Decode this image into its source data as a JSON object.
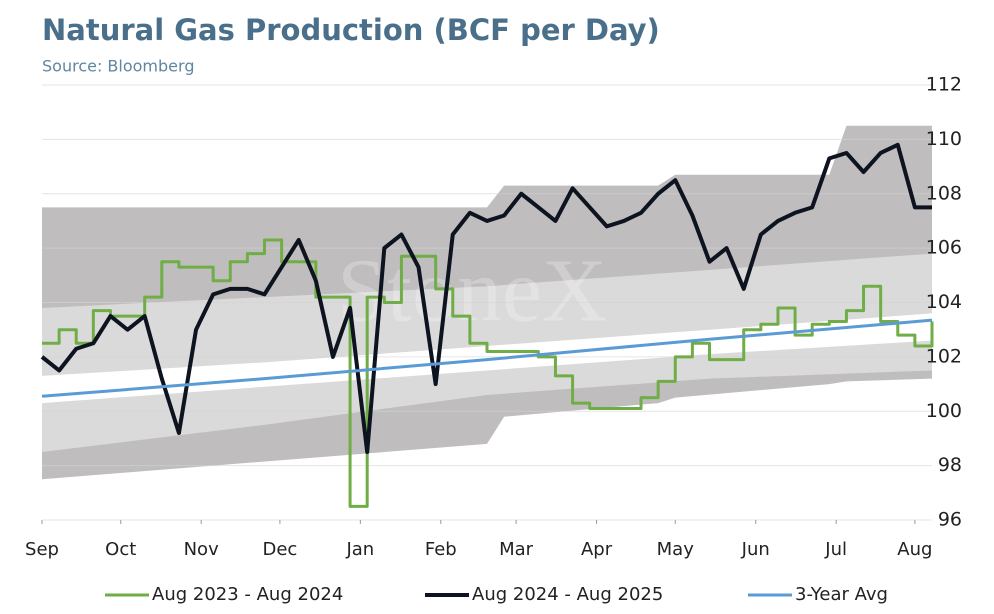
{
  "chart_data": {
    "type": "line",
    "title": "Natural Gas Production (BCF per Day)",
    "subtitle": "Source: Bloomberg",
    "watermark": "StoneX",
    "xlim": [
      0,
      52
    ],
    "xticks": [
      {
        "value": 0,
        "label": "Sep"
      },
      {
        "value": 4.6,
        "label": "Oct"
      },
      {
        "value": 9.3,
        "label": "Nov"
      },
      {
        "value": 13.9,
        "label": "Dec"
      },
      {
        "value": 18.6,
        "label": "Jan"
      },
      {
        "value": 23.3,
        "label": "Feb"
      },
      {
        "value": 27.7,
        "label": "Mar"
      },
      {
        "value": 32.4,
        "label": "Apr"
      },
      {
        "value": 37,
        "label": "May"
      },
      {
        "value": 41.7,
        "label": "Jun"
      },
      {
        "value": 46.4,
        "label": "Jul"
      },
      {
        "value": 51,
        "label": "Aug"
      }
    ],
    "ylim": [
      96,
      112
    ],
    "yticks": [
      96,
      98,
      100,
      102,
      104,
      106,
      108,
      110,
      112
    ],
    "grid": true,
    "legend": "bottom",
    "bands": [
      {
        "color": "#bfbdbd",
        "x": [
          0,
          26,
          27,
          36,
          37,
          46,
          47,
          52
        ],
        "upper": [
          107.5,
          107.5,
          108.3,
          108.3,
          108.7,
          108.7,
          110.5,
          110.5
        ],
        "lower": [
          97.5,
          98.8,
          99.8,
          100.3,
          100.5,
          101,
          101.1,
          101.2
        ]
      },
      {
        "color": "#dadada",
        "x": [
          0,
          13,
          26,
          39,
          52
        ],
        "upper": [
          103.8,
          104.2,
          104.6,
          105.2,
          105.8
        ],
        "lower": [
          98.5,
          99.5,
          100.6,
          101.2,
          101.5
        ]
      },
      {
        "color": "#ffffff",
        "x": [
          0,
          13,
          26,
          39,
          52
        ],
        "upper": [
          101.3,
          101.8,
          102.4,
          103,
          103.6
        ],
        "lower": [
          100.3,
          100.9,
          101.5,
          102.1,
          102.6
        ]
      }
    ],
    "series": [
      {
        "name": "Aug 2023 - Aug 2024",
        "color": "#70ad47",
        "step": true,
        "x": [
          0,
          1,
          2,
          3,
          4,
          5,
          6,
          7,
          8,
          9,
          10,
          11,
          12,
          13,
          14,
          15,
          16,
          17,
          18,
          19,
          20,
          21,
          22,
          23,
          24,
          25,
          26,
          27,
          28,
          29,
          30,
          31,
          32,
          33,
          34,
          35,
          36,
          37,
          38,
          39,
          40,
          41,
          42,
          43,
          44,
          45,
          46,
          47,
          48,
          49,
          50,
          51,
          52
        ],
        "values": [
          102.5,
          103,
          102.5,
          103.7,
          103.5,
          103.5,
          104.2,
          105.5,
          105.3,
          105.3,
          104.8,
          105.5,
          105.8,
          106.3,
          105.5,
          105.5,
          104.2,
          104.2,
          96.5,
          104.2,
          104,
          105.7,
          105.7,
          104.5,
          103.5,
          102.5,
          102.2,
          102.2,
          102.2,
          102,
          101.3,
          100.3,
          100.1,
          100.1,
          100.1,
          100.5,
          101.1,
          102,
          102.5,
          101.9,
          101.9,
          103,
          103.2,
          103.8,
          102.8,
          103.2,
          103.3,
          103.7,
          104.6,
          103.3,
          102.8,
          102.4,
          103.3
        ]
      },
      {
        "name": "Aug 2024 - Aug 2025",
        "color": "#0d1420",
        "width": 4,
        "x": [
          0,
          1,
          2,
          3,
          4,
          5,
          6,
          7,
          8,
          9,
          10,
          11,
          12,
          13,
          14,
          15,
          16,
          17,
          18,
          19,
          20,
          21,
          22,
          23,
          24,
          25,
          26,
          27,
          28,
          29,
          30,
          31,
          32,
          33,
          34,
          35,
          36,
          37,
          38,
          39,
          40,
          41,
          42,
          43,
          44,
          45,
          46,
          47,
          48,
          49,
          50,
          51,
          52
        ],
        "values": [
          102,
          101.5,
          102.3,
          102.5,
          103.5,
          103,
          103.5,
          101.2,
          99.2,
          103,
          104.3,
          104.5,
          104.5,
          104.3,
          105.3,
          106.3,
          104.8,
          102,
          103.8,
          98.5,
          106,
          106.5,
          105.3,
          101,
          106.5,
          107.3,
          107,
          107.2,
          108,
          107.5,
          107,
          108.2,
          107.5,
          106.8,
          107,
          107.3,
          108,
          108.5,
          107.2,
          105.5,
          106,
          104.5,
          106.5,
          107,
          107.3,
          107.5,
          109.3,
          109.5,
          108.8,
          109.5,
          109.8,
          107.5,
          107.5
        ]
      },
      {
        "name": "3-Year Avg",
        "color": "#5b9bd5",
        "x": [
          0,
          13,
          26,
          39,
          52
        ],
        "values": [
          100.55,
          101.2,
          101.9,
          102.65,
          103.35
        ]
      }
    ]
  }
}
